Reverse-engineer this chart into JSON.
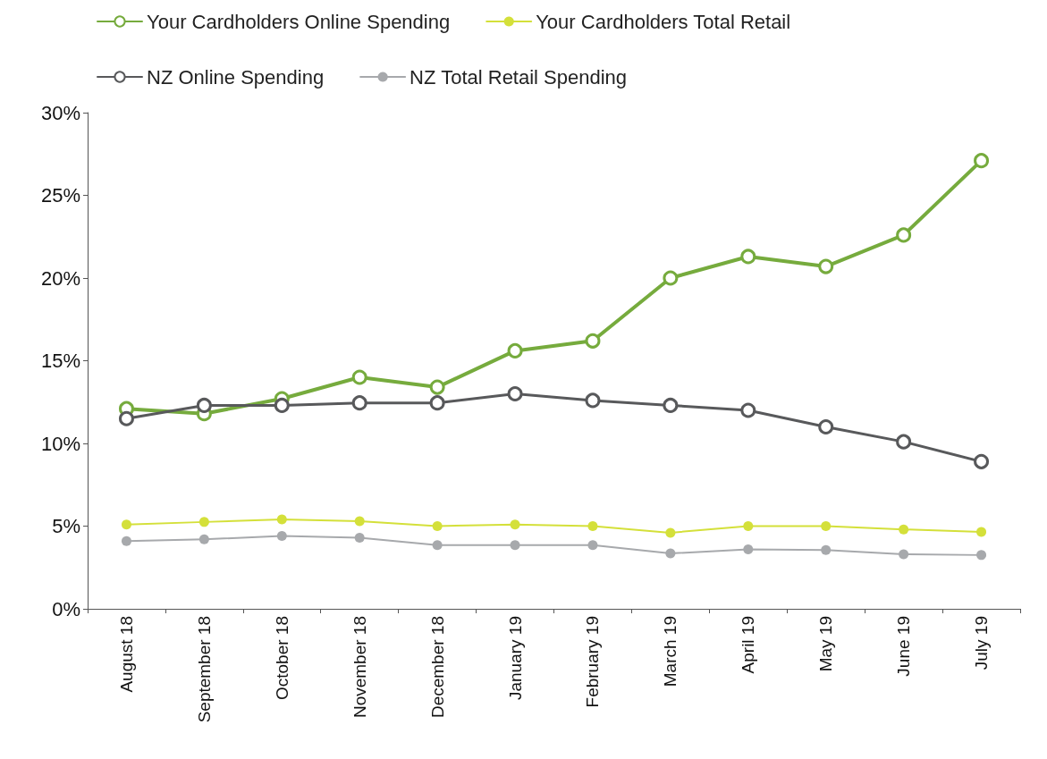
{
  "chart_data": {
    "type": "line",
    "categories": [
      "August 18",
      "September 18",
      "October 18",
      "November 18",
      "December 18",
      "January 19",
      "February 19",
      "March 19",
      "April 19",
      "May 19",
      "June 19",
      "July 19"
    ],
    "series": [
      {
        "name": "Your Cardholders Online Spending",
        "color": "#76ab3d",
        "values": [
          12.1,
          11.8,
          12.7,
          14.0,
          13.4,
          15.6,
          16.2,
          20.0,
          21.3,
          20.7,
          22.6,
          27.1
        ]
      },
      {
        "name": "Your Cardholders Total Retail",
        "color": "#d4e03a",
        "values": [
          5.1,
          5.25,
          5.4,
          5.3,
          5.0,
          5.1,
          5.0,
          4.6,
          5.0,
          5.0,
          4.8,
          4.65
        ]
      },
      {
        "name": "NZ Online Spending",
        "color": "#58595b",
        "values": [
          11.5,
          12.3,
          12.3,
          12.45,
          12.45,
          13.0,
          12.6,
          12.3,
          12.0,
          11.0,
          10.1,
          8.9
        ]
      },
      {
        "name": "NZ Total Retail Spending",
        "color": "#a7a9ac",
        "values": [
          4.1,
          4.2,
          4.4,
          4.3,
          3.85,
          3.85,
          3.85,
          3.35,
          3.6,
          3.55,
          3.3,
          3.25
        ]
      }
    ],
    "ylim": [
      0,
      30
    ],
    "yticks": [
      {
        "value": 0,
        "label": "0%"
      },
      {
        "value": 5,
        "label": "5%"
      },
      {
        "value": 10,
        "label": "10%"
      },
      {
        "value": 15,
        "label": "15%"
      },
      {
        "value": 20,
        "label": "20%"
      },
      {
        "value": 25,
        "label": "25%"
      },
      {
        "value": 30,
        "label": "30%"
      }
    ],
    "grid": false,
    "legend": "top",
    "marker": "circle",
    "line_style": "solid"
  }
}
